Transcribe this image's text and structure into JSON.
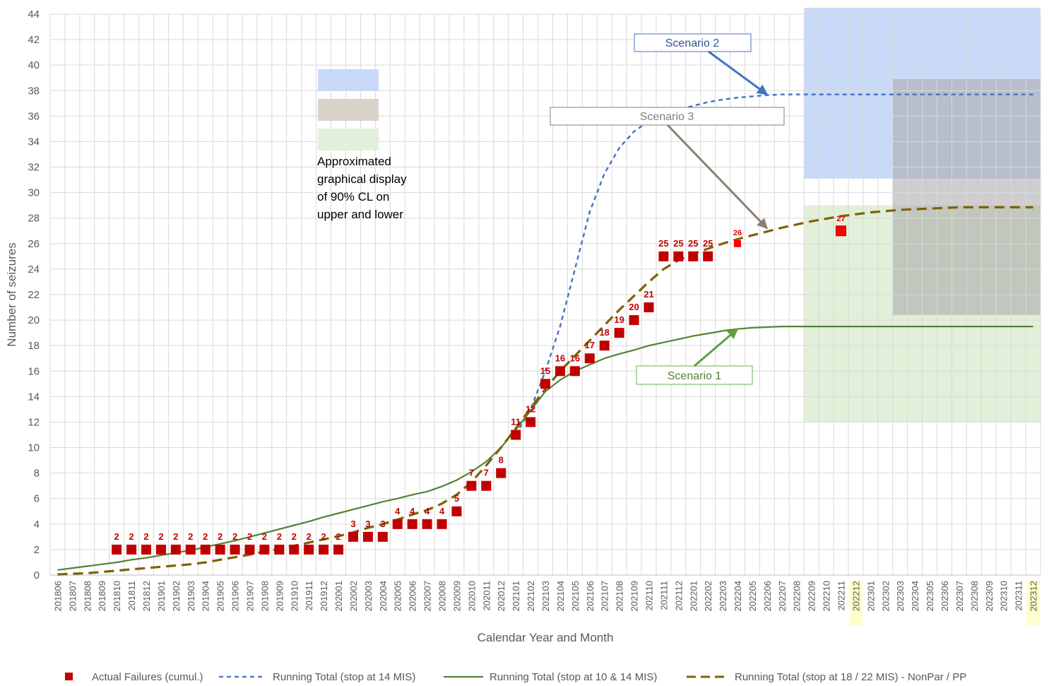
{
  "chart_data": {
    "type": "line",
    "xlabel": "Calendar Year and Month",
    "ylabel": "Number of seizures",
    "ylim": [
      0,
      44
    ],
    "y_ticks": [
      0,
      2,
      4,
      6,
      8,
      10,
      12,
      14,
      16,
      18,
      20,
      22,
      24,
      26,
      28,
      30,
      32,
      34,
      36,
      38,
      40,
      42,
      44
    ],
    "grid": true,
    "legend_position": "bottom",
    "categories": [
      "201806",
      "201807",
      "201808",
      "201809",
      "201810",
      "201811",
      "201812",
      "201901",
      "201902",
      "201903",
      "201904",
      "201905",
      "201906",
      "201907",
      "201908",
      "201909",
      "201910",
      "201911",
      "201912",
      "202001",
      "202002",
      "202003",
      "202004",
      "202005",
      "202006",
      "202007",
      "202008",
      "202009",
      "202010",
      "202011",
      "202012",
      "202101",
      "202102",
      "202103",
      "202104",
      "202105",
      "202106",
      "202107",
      "202108",
      "202109",
      "202110",
      "202111",
      "202112",
      "202201",
      "202202",
      "202203",
      "202204",
      "202205",
      "202206",
      "202207",
      "202208",
      "202209",
      "202210",
      "202211",
      "202212",
      "202301",
      "202302",
      "202303",
      "202304",
      "202305",
      "202306",
      "202307",
      "202308",
      "202309",
      "202310",
      "202311",
      "202312"
    ],
    "highlighted_categories": [
      "202212",
      "202312"
    ],
    "series": [
      {
        "name": "Actual Failures (cumul.)",
        "kind": "marker",
        "color": "#c00000",
        "points": [
          {
            "x": "201810",
            "y": 2
          },
          {
            "x": "201811",
            "y": 2
          },
          {
            "x": "201812",
            "y": 2
          },
          {
            "x": "201901",
            "y": 2
          },
          {
            "x": "201902",
            "y": 2
          },
          {
            "x": "201903",
            "y": 2
          },
          {
            "x": "201904",
            "y": 2
          },
          {
            "x": "201905",
            "y": 2
          },
          {
            "x": "201906",
            "y": 2
          },
          {
            "x": "201907",
            "y": 2
          },
          {
            "x": "201908",
            "y": 2
          },
          {
            "x": "201909",
            "y": 2
          },
          {
            "x": "201910",
            "y": 2
          },
          {
            "x": "201911",
            "y": 2
          },
          {
            "x": "201912",
            "y": 2
          },
          {
            "x": "202001",
            "y": 2
          },
          {
            "x": "202002",
            "y": 3
          },
          {
            "x": "202003",
            "y": 3
          },
          {
            "x": "202004",
            "y": 3
          },
          {
            "x": "202005",
            "y": 4
          },
          {
            "x": "202006",
            "y": 4
          },
          {
            "x": "202007",
            "y": 4
          },
          {
            "x": "202008",
            "y": 4
          },
          {
            "x": "202009",
            "y": 5
          },
          {
            "x": "202010",
            "y": 7
          },
          {
            "x": "202011",
            "y": 7
          },
          {
            "x": "202012",
            "y": 8
          },
          {
            "x": "202101",
            "y": 11
          },
          {
            "x": "202102",
            "y": 12
          },
          {
            "x": "202103",
            "y": 15
          },
          {
            "x": "202104",
            "y": 16
          },
          {
            "x": "202105",
            "y": 16
          },
          {
            "x": "202106",
            "y": 17
          },
          {
            "x": "202107",
            "y": 18
          },
          {
            "x": "202108",
            "y": 19
          },
          {
            "x": "202109",
            "y": 20
          },
          {
            "x": "202110",
            "y": 21
          },
          {
            "x": "202111",
            "y": 25
          },
          {
            "x": "202112",
            "y": 25
          },
          {
            "x": "202201",
            "y": 25
          },
          {
            "x": "202202",
            "y": 25
          },
          {
            "x": "202204",
            "y": 26,
            "style": "small-bright"
          },
          {
            "x": "202211",
            "y": 27,
            "style": "bright"
          }
        ]
      },
      {
        "name": "Running Total (stop at 14 MIS)",
        "kind": "dashed-line",
        "color": "#4472c4",
        "points": [
          {
            "x": "202101",
            "y": 11
          },
          {
            "x": "202102",
            "y": 13
          },
          {
            "x": "202103",
            "y": 16
          },
          {
            "x": "202104",
            "y": 19.5
          },
          {
            "x": "202105",
            "y": 24
          },
          {
            "x": "202106",
            "y": 28.5
          },
          {
            "x": "202107",
            "y": 31.5
          },
          {
            "x": "202108",
            "y": 33.5
          },
          {
            "x": "202109",
            "y": 34.8
          },
          {
            "x": "202110",
            "y": 35.6
          },
          {
            "x": "202111",
            "y": 36.1
          },
          {
            "x": "202112",
            "y": 36.5
          },
          {
            "x": "202201",
            "y": 36.8
          },
          {
            "x": "202202",
            "y": 37.1
          },
          {
            "x": "202203",
            "y": 37.3
          },
          {
            "x": "202204",
            "y": 37.45
          },
          {
            "x": "202205",
            "y": 37.55
          },
          {
            "x": "202206",
            "y": 37.65
          },
          {
            "x": "202207",
            "y": 37.7
          },
          {
            "x": "202312",
            "y": 37.7
          }
        ]
      },
      {
        "name": "Running Total (stop at 10 & 14 MIS)",
        "kind": "solid-line",
        "color": "#548235",
        "points": [
          {
            "x": "201806",
            "y": 0.4
          },
          {
            "x": "201807",
            "y": 0.55
          },
          {
            "x": "201808",
            "y": 0.7
          },
          {
            "x": "201809",
            "y": 0.85
          },
          {
            "x": "201810",
            "y": 1.0
          },
          {
            "x": "201811",
            "y": 1.2
          },
          {
            "x": "201812",
            "y": 1.35
          },
          {
            "x": "201901",
            "y": 1.55
          },
          {
            "x": "201902",
            "y": 1.75
          },
          {
            "x": "201903",
            "y": 1.95
          },
          {
            "x": "201904",
            "y": 2.2
          },
          {
            "x": "201905",
            "y": 2.45
          },
          {
            "x": "201906",
            "y": 2.7
          },
          {
            "x": "201907",
            "y": 3.0
          },
          {
            "x": "201908",
            "y": 3.3
          },
          {
            "x": "201909",
            "y": 3.6
          },
          {
            "x": "201910",
            "y": 3.9
          },
          {
            "x": "201911",
            "y": 4.2
          },
          {
            "x": "201912",
            "y": 4.55
          },
          {
            "x": "202001",
            "y": 4.85
          },
          {
            "x": "202002",
            "y": 5.15
          },
          {
            "x": "202003",
            "y": 5.45
          },
          {
            "x": "202004",
            "y": 5.75
          },
          {
            "x": "202005",
            "y": 6.0
          },
          {
            "x": "202006",
            "y": 6.3
          },
          {
            "x": "202007",
            "y": 6.55
          },
          {
            "x": "202008",
            "y": 6.95
          },
          {
            "x": "202009",
            "y": 7.45
          },
          {
            "x": "202010",
            "y": 8.1
          },
          {
            "x": "202011",
            "y": 8.9
          },
          {
            "x": "202012",
            "y": 10.0
          },
          {
            "x": "202101",
            "y": 11.4
          },
          {
            "x": "202102",
            "y": 12.9
          },
          {
            "x": "202103",
            "y": 14.4
          },
          {
            "x": "202104",
            "y": 15.3
          },
          {
            "x": "202105",
            "y": 16.0
          },
          {
            "x": "202106",
            "y": 16.5
          },
          {
            "x": "202107",
            "y": 17.0
          },
          {
            "x": "202108",
            "y": 17.35
          },
          {
            "x": "202109",
            "y": 17.65
          },
          {
            "x": "202110",
            "y": 18.0
          },
          {
            "x": "202111",
            "y": 18.25
          },
          {
            "x": "202112",
            "y": 18.5
          },
          {
            "x": "202201",
            "y": 18.75
          },
          {
            "x": "202202",
            "y": 18.95
          },
          {
            "x": "202203",
            "y": 19.15
          },
          {
            "x": "202204",
            "y": 19.3
          },
          {
            "x": "202205",
            "y": 19.4
          },
          {
            "x": "202206",
            "y": 19.45
          },
          {
            "x": "202207",
            "y": 19.5
          },
          {
            "x": "202312",
            "y": 19.5
          }
        ]
      },
      {
        "name": "Running Total (stop at 18 / 22 MIS) - NonPar / PP",
        "kind": "long-dashed-line",
        "color": "#7f6000",
        "points": [
          {
            "x": "201806",
            "y": 0.05
          },
          {
            "x": "201807",
            "y": 0.1
          },
          {
            "x": "201808",
            "y": 0.15
          },
          {
            "x": "201809",
            "y": 0.25
          },
          {
            "x": "201810",
            "y": 0.35
          },
          {
            "x": "201811",
            "y": 0.45
          },
          {
            "x": "201812",
            "y": 0.55
          },
          {
            "x": "201901",
            "y": 0.65
          },
          {
            "x": "201902",
            "y": 0.75
          },
          {
            "x": "201903",
            "y": 0.85
          },
          {
            "x": "201904",
            "y": 1.0
          },
          {
            "x": "201905",
            "y": 1.2
          },
          {
            "x": "201906",
            "y": 1.4
          },
          {
            "x": "201907",
            "y": 1.6
          },
          {
            "x": "201908",
            "y": 1.85
          },
          {
            "x": "201909",
            "y": 2.05
          },
          {
            "x": "201910",
            "y": 2.3
          },
          {
            "x": "201911",
            "y": 2.55
          },
          {
            "x": "201912",
            "y": 2.8
          },
          {
            "x": "202001",
            "y": 3.05
          },
          {
            "x": "202002",
            "y": 3.35
          },
          {
            "x": "202003",
            "y": 3.7
          },
          {
            "x": "202004",
            "y": 4.0
          },
          {
            "x": "202005",
            "y": 4.35
          },
          {
            "x": "202006",
            "y": 4.75
          },
          {
            "x": "202007",
            "y": 5.1
          },
          {
            "x": "202008",
            "y": 5.6
          },
          {
            "x": "202009",
            "y": 6.3
          },
          {
            "x": "202010",
            "y": 7.3
          },
          {
            "x": "202011",
            "y": 8.6
          },
          {
            "x": "202012",
            "y": 10.0
          },
          {
            "x": "202101",
            "y": 11.5
          },
          {
            "x": "202102",
            "y": 13.1
          },
          {
            "x": "202103",
            "y": 14.6
          },
          {
            "x": "202104",
            "y": 16.0
          },
          {
            "x": "202105",
            "y": 17.2
          },
          {
            "x": "202106",
            "y": 18.4
          },
          {
            "x": "202107",
            "y": 19.6
          },
          {
            "x": "202108",
            "y": 20.8
          },
          {
            "x": "202109",
            "y": 21.9
          },
          {
            "x": "202110",
            "y": 23.0
          },
          {
            "x": "202111",
            "y": 24.0
          },
          {
            "x": "202112",
            "y": 24.7
          },
          {
            "x": "202201",
            "y": 25.2
          },
          {
            "x": "202202",
            "y": 25.6
          },
          {
            "x": "202203",
            "y": 26.0
          },
          {
            "x": "202204",
            "y": 26.35
          },
          {
            "x": "202205",
            "y": 26.65
          },
          {
            "x": "202206",
            "y": 26.95
          },
          {
            "x": "202207",
            "y": 27.25
          },
          {
            "x": "202208",
            "y": 27.5
          },
          {
            "x": "202209",
            "y": 27.75
          },
          {
            "x": "202210",
            "y": 27.95
          },
          {
            "x": "202211",
            "y": 28.15
          },
          {
            "x": "202212",
            "y": 28.3
          },
          {
            "x": "202301",
            "y": 28.45
          },
          {
            "x": "202302",
            "y": 28.55
          },
          {
            "x": "202303",
            "y": 28.65
          },
          {
            "x": "202304",
            "y": 28.7
          },
          {
            "x": "202305",
            "y": 28.75
          },
          {
            "x": "202306",
            "y": 28.8
          },
          {
            "x": "202307",
            "y": 28.85
          },
          {
            "x": "202312",
            "y": 28.85
          }
        ]
      }
    ],
    "confidence_bands": [
      {
        "color": "#c9daf8",
        "x_from": "202209",
        "x_to": "202312",
        "y_low": 31.1,
        "y_high": 44.5
      },
      {
        "color": "#e2efd9",
        "x_from": "202209",
        "x_to": "202312",
        "y_low": 12.0,
        "y_high": 29.0
      },
      {
        "color": "#a6a6a6",
        "x_from": "202303",
        "x_to": "202312",
        "y_low": 20.4,
        "y_high": 38.9
      }
    ],
    "swatches": [
      "#c9daf8",
      "#d9d3cb",
      "#e2efd9"
    ],
    "note": "Approximated graphical display of 90% CL on upper and lower",
    "annotations": [
      {
        "text": "Scenario 2",
        "color": "#2f5597",
        "border": "#4472c4",
        "arrow_to": {
          "x": "202206",
          "y": 37.7
        }
      },
      {
        "text": "Scenario 3",
        "color": "#7f7f7f",
        "border": "#7f7f7f",
        "arrow_to": {
          "x": "202206",
          "y": 27.2
        }
      },
      {
        "text": "Scenario 1",
        "color": "#548235",
        "border": "#70ad47",
        "arrow_to": {
          "x": "202204",
          "y": 19.3
        }
      }
    ]
  }
}
